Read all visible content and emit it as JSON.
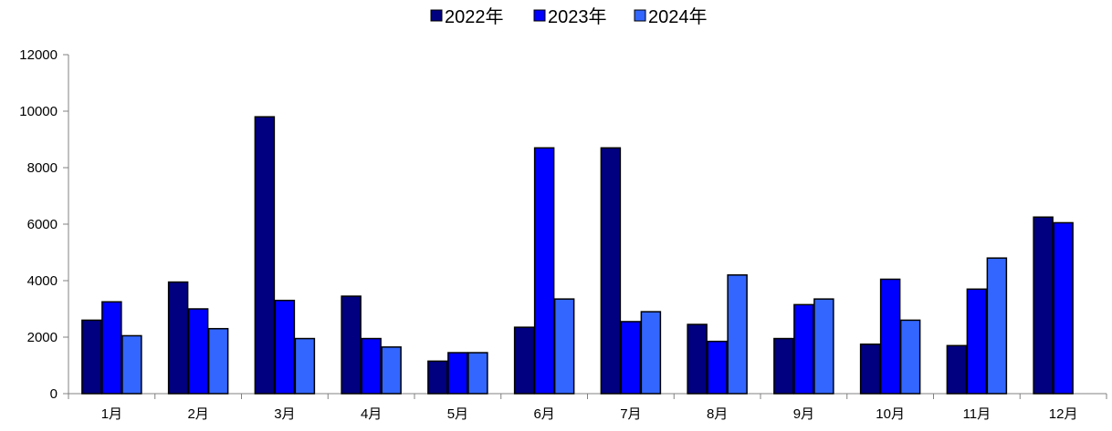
{
  "chart_data": {
    "type": "bar",
    "title": "",
    "xlabel": "",
    "ylabel": "",
    "categories": [
      "1月",
      "2月",
      "3月",
      "4月",
      "5月",
      "6月",
      "7月",
      "8月",
      "9月",
      "10月",
      "11月",
      "12月"
    ],
    "series": [
      {
        "name": "2022年",
        "color": "#000080",
        "values": [
          2600,
          3950,
          9800,
          3450,
          1150,
          2350,
          8700,
          2450,
          1950,
          1750,
          1700,
          6250
        ]
      },
      {
        "name": "2023年",
        "color": "#0000FF",
        "values": [
          3250,
          3000,
          3300,
          1950,
          1450,
          8700,
          2550,
          1850,
          3150,
          4050,
          3700,
          6050
        ]
      },
      {
        "name": "2024年",
        "color": "#3366FF",
        "values": [
          2050,
          2300,
          1950,
          1650,
          1450,
          3350,
          2900,
          4200,
          3350,
          2600,
          4800,
          null
        ]
      }
    ],
    "ylim": [
      0,
      12000
    ],
    "yticks": [
      0,
      2000,
      4000,
      6000,
      8000,
      10000,
      12000
    ],
    "grid": false,
    "legend_position": "top-center"
  }
}
